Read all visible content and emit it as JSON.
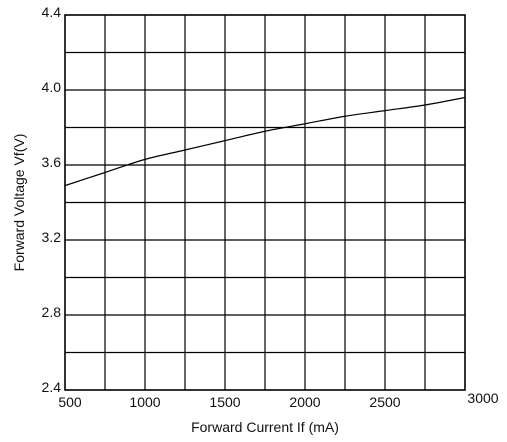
{
  "chart_data": {
    "type": "line",
    "title": "",
    "xlabel": "Forward Current  If (mA)",
    "ylabel": "Forward Voltage Vf(V)",
    "xlim": [
      500,
      3000
    ],
    "ylim": [
      2.4,
      4.4
    ],
    "grid": true,
    "legend": "none",
    "x_ticks": [
      {
        "value": 500,
        "label": "500"
      },
      {
        "value": 1000,
        "label": "1000"
      },
      {
        "value": 1500,
        "label": "1500"
      },
      {
        "value": 2000,
        "label": "2000"
      },
      {
        "value": 2500,
        "label": "2500"
      },
      {
        "value": 3000,
        "label": "3000"
      }
    ],
    "y_ticks": [
      {
        "value": 2.4,
        "label": "2.4"
      },
      {
        "value": 2.8,
        "label": "2.8"
      },
      {
        "value": 3.2,
        "label": "3.2"
      },
      {
        "value": 3.6,
        "label": "3.6"
      },
      {
        "value": 4.0,
        "label": "4.0"
      },
      {
        "value": 4.4,
        "label": "4.4"
      }
    ],
    "x_grid_step": 250,
    "y_grid_step": 0.2,
    "series": [
      {
        "color": "#000000",
        "x": [
          500,
          750,
          1000,
          1250,
          1500,
          1750,
          2000,
          2250,
          2500,
          2750,
          3000
        ],
        "y": [
          3.49,
          3.56,
          3.63,
          3.68,
          3.73,
          3.78,
          3.82,
          3.86,
          3.89,
          3.92,
          3.96
        ]
      }
    ]
  }
}
